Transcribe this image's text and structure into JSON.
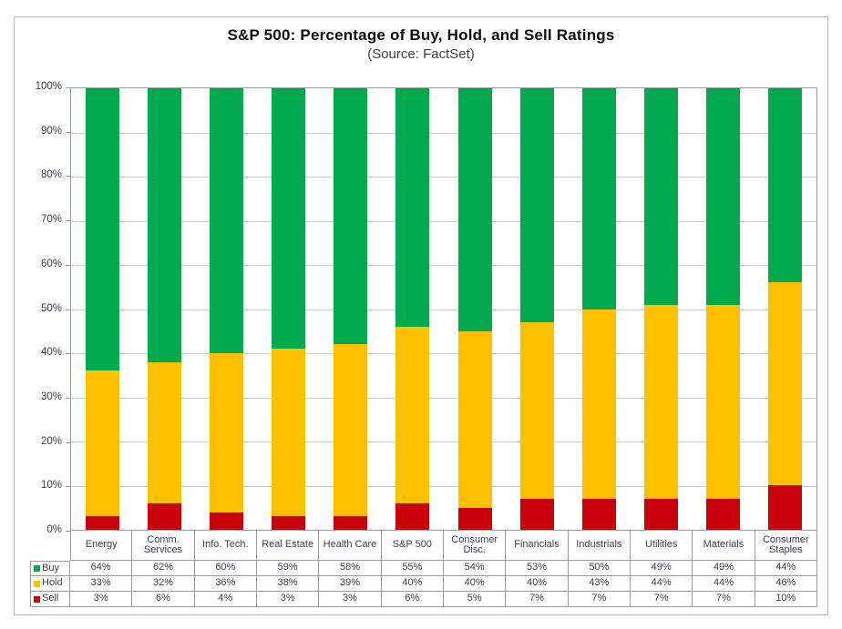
{
  "chart_data": {
    "type": "bar",
    "stacked": true,
    "title": "S&P 500: Percentage of Buy, Hold, and Sell Ratings",
    "subtitle": "(Source: FactSet)",
    "categories": [
      "Energy",
      "Comm. Services",
      "Info. Tech.",
      "Real Estate",
      "Health Care",
      "S&P 500",
      "Consumer Disc.",
      "Financials",
      "Industrials",
      "Utilities",
      "Materials",
      "Consumer Staples"
    ],
    "series": [
      {
        "name": "Buy",
        "color": "#00A84F",
        "values": [
          64,
          62,
          60,
          59,
          58,
          55,
          54,
          53,
          50,
          49,
          49,
          44
        ]
      },
      {
        "name": "Hold",
        "color": "#FFC000",
        "values": [
          33,
          32,
          36,
          38,
          39,
          40,
          40,
          40,
          43,
          44,
          44,
          46
        ]
      },
      {
        "name": "Sell",
        "color": "#C8000A",
        "values": [
          3,
          6,
          4,
          3,
          3,
          6,
          5,
          7,
          7,
          7,
          7,
          10
        ]
      }
    ],
    "value_suffix": "%",
    "ylim": [
      0,
      100
    ],
    "yticks": [
      "100%",
      "90%",
      "80%",
      "70%",
      "60%",
      "50%",
      "40%",
      "30%",
      "20%",
      "10%",
      "0%"
    ],
    "grid": true,
    "legend_position": "table-left"
  }
}
